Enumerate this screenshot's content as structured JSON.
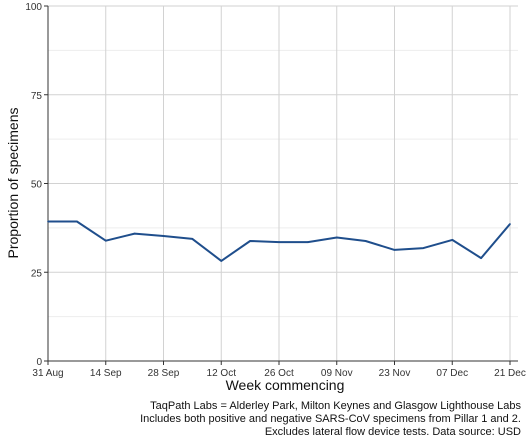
{
  "chart_data": {
    "type": "line",
    "xlabel": "Week commencing",
    "ylabel": "Proportion of specimens",
    "ylim": [
      0,
      100
    ],
    "yticks": [
      0,
      25,
      50,
      75,
      100
    ],
    "ytick_labels": [
      "0",
      "25",
      "50",
      "75",
      "100"
    ],
    "xticks": [
      "2020-08-31",
      "2020-09-14",
      "2020-09-28",
      "2020-10-12",
      "2020-10-26",
      "2020-11-09",
      "2020-11-23",
      "2020-12-07",
      "2020-12-21"
    ],
    "xtick_labels": [
      "31 Aug",
      "14 Sep",
      "28 Sep",
      "12 Oct",
      "26 Oct",
      "09 Nov",
      "23 Nov",
      "07 Dec",
      "21 Dec"
    ],
    "grid": true,
    "line_color": "#1f4e8c",
    "series": [
      {
        "x": [
          "2020-08-31",
          "2020-09-07",
          "2020-09-14",
          "2020-09-21",
          "2020-09-28",
          "2020-10-05",
          "2020-10-12",
          "2020-10-19",
          "2020-10-26",
          "2020-11-02",
          "2020-11-09",
          "2020-11-16",
          "2020-11-23",
          "2020-11-30",
          "2020-12-07",
          "2020-12-14",
          "2020-12-21"
        ],
        "values": [
          39.3,
          39.3,
          33.9,
          35.9,
          35.2,
          34.4,
          28.2,
          33.8,
          33.5,
          33.5,
          34.8,
          33.8,
          31.3,
          31.8,
          34.1,
          29.0,
          38.6
        ]
      }
    ],
    "caption": [
      "TaqPath Labs = Alderley Park, Milton Keynes and Glasgow Lighthouse Labs",
      "Includes both positive and negative SARS-CoV specimens from Pillar 1 and 2.",
      "Excludes lateral flow device tests. Data source: USD"
    ]
  }
}
